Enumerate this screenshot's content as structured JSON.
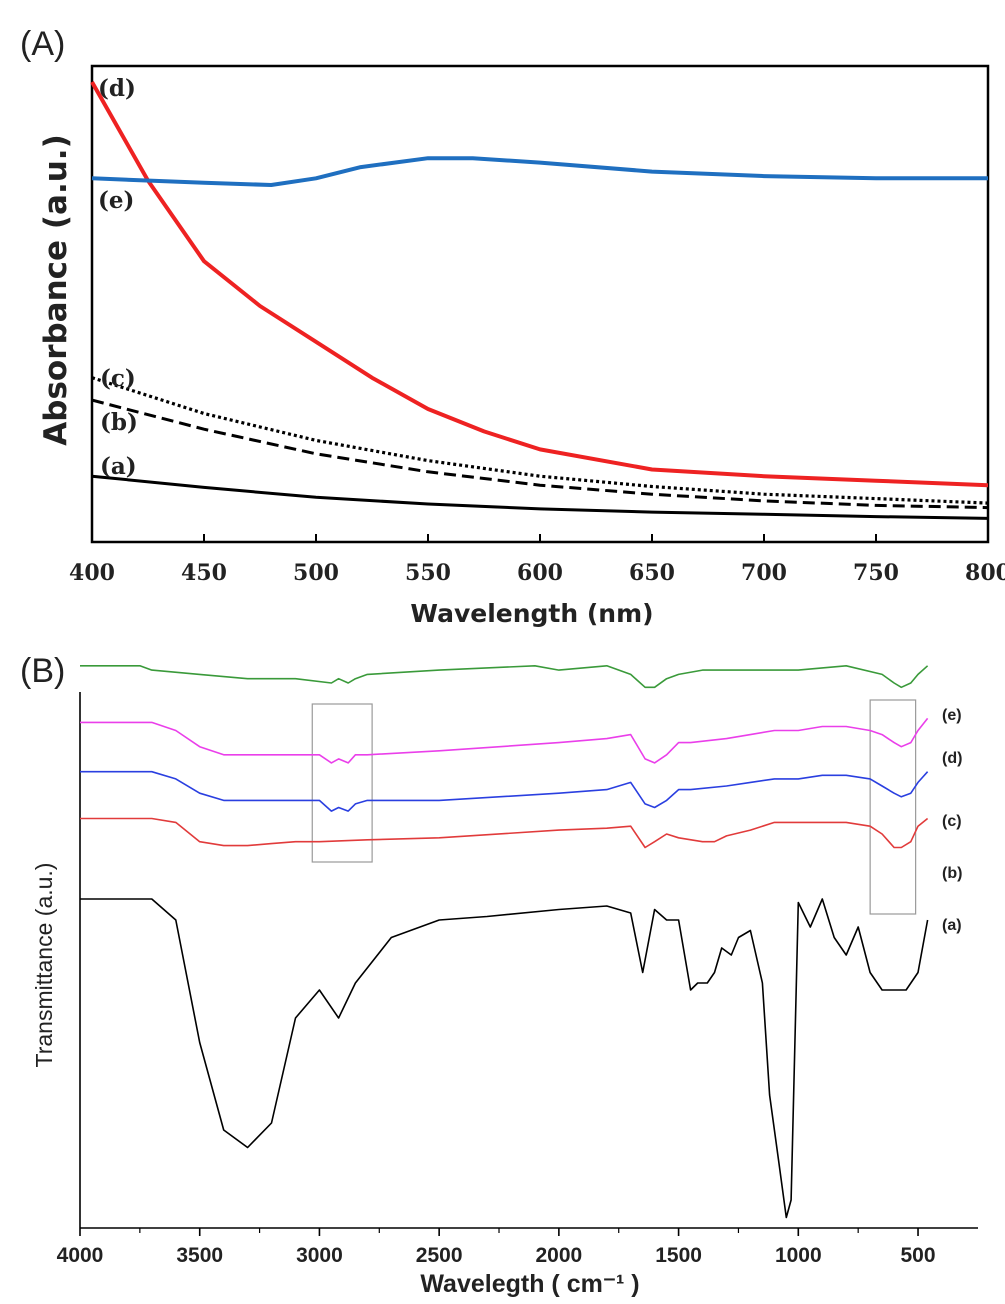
{
  "chart_data": [
    {
      "panel_label": "(A)",
      "type": "line",
      "title": "",
      "xlabel": "Wavelength (nm)",
      "ylabel": "Absorbance (a.u.)",
      "xlim": [
        400,
        800
      ],
      "ylim": [
        0,
        1
      ],
      "xticks": [
        "400",
        "450",
        "500",
        "550",
        "600",
        "650",
        "700",
        "750",
        "800"
      ],
      "grid": false,
      "series": [
        {
          "name": "(a)",
          "color": "#000000",
          "style": "solid",
          "x": [
            400,
            450,
            500,
            550,
            600,
            650,
            700,
            750,
            800
          ],
          "y": [
            0.12,
            0.095,
            0.073,
            0.058,
            0.047,
            0.04,
            0.035,
            0.03,
            0.026
          ]
        },
        {
          "name": "(b)",
          "color": "#000000",
          "style": "dashed",
          "x": [
            400,
            450,
            500,
            550,
            600,
            650,
            700,
            750,
            800
          ],
          "y": [
            0.29,
            0.225,
            0.17,
            0.13,
            0.1,
            0.08,
            0.065,
            0.055,
            0.05
          ]
        },
        {
          "name": "(c)",
          "color": "#000000",
          "style": "dotted",
          "x": [
            400,
            450,
            500,
            550,
            600,
            650,
            700,
            750,
            800
          ],
          "y": [
            0.34,
            0.26,
            0.2,
            0.155,
            0.12,
            0.097,
            0.08,
            0.07,
            0.06
          ]
        },
        {
          "name": "(d)",
          "color": "#ee2222",
          "style": "solid",
          "x": [
            400,
            425,
            450,
            475,
            500,
            525,
            550,
            575,
            600,
            650,
            700,
            750,
            800
          ],
          "y": [
            1.0,
            0.78,
            0.6,
            0.5,
            0.42,
            0.34,
            0.27,
            0.22,
            0.18,
            0.135,
            0.12,
            0.11,
            0.1
          ]
        },
        {
          "name": "(e)",
          "color": "#1f6fc0",
          "style": "solid",
          "x": [
            400,
            450,
            480,
            500,
            520,
            550,
            570,
            600,
            650,
            700,
            750,
            800
          ],
          "y": [
            0.785,
            0.775,
            0.77,
            0.785,
            0.81,
            0.83,
            0.83,
            0.82,
            0.8,
            0.79,
            0.785,
            0.785
          ]
        }
      ]
    },
    {
      "panel_label": "(B)",
      "type": "line",
      "title": "",
      "xlabel": "Wavelegth ( cm⁻¹ )",
      "ylabel": "Transmittance (a.u.)",
      "xlim": [
        4000,
        450
      ],
      "ylim": [
        0,
        1
      ],
      "xticks": [
        "4000",
        "3500",
        "3000",
        "2500",
        "2000",
        "1500",
        "1000",
        "500"
      ],
      "grid": false,
      "highlight_regions_x": [
        [
          3030,
          2780
        ],
        [
          700,
          510
        ]
      ],
      "series": [
        {
          "name": "(a)",
          "color": "#000000",
          "x": [
            4000,
            3700,
            3600,
            3500,
            3400,
            3300,
            3200,
            3100,
            3000,
            2920,
            2850,
            2700,
            2500,
            2300,
            2000,
            1800,
            1700,
            1650,
            1600,
            1550,
            1500,
            1450,
            1420,
            1380,
            1350,
            1320,
            1280,
            1250,
            1200,
            1150,
            1120,
            1080,
            1050,
            1030,
            1000,
            950,
            900,
            850,
            800,
            750,
            700,
            650,
            600,
            550,
            500,
            460
          ],
          "y": [
            0.96,
            0.96,
            0.9,
            0.55,
            0.3,
            0.25,
            0.32,
            0.62,
            0.7,
            0.62,
            0.72,
            0.85,
            0.9,
            0.91,
            0.93,
            0.94,
            0.92,
            0.75,
            0.93,
            0.9,
            0.9,
            0.7,
            0.72,
            0.72,
            0.75,
            0.82,
            0.8,
            0.85,
            0.87,
            0.72,
            0.4,
            0.2,
            0.05,
            0.1,
            0.95,
            0.88,
            0.96,
            0.85,
            0.8,
            0.88,
            0.75,
            0.7,
            0.7,
            0.7,
            0.75,
            0.9
          ]
        },
        {
          "name": "(b)",
          "color": "#e13b3b",
          "x": [
            4000,
            3700,
            3600,
            3500,
            3400,
            3300,
            3200,
            3100,
            3000,
            2800,
            2500,
            2000,
            1800,
            1700,
            1640,
            1600,
            1550,
            1500,
            1400,
            1350,
            1300,
            1200,
            1100,
            1000,
            900,
            800,
            700,
            650,
            600,
            570,
            530,
            500,
            460
          ],
          "y": [
            0.96,
            0.96,
            0.95,
            0.9,
            0.89,
            0.89,
            0.895,
            0.9,
            0.9,
            0.905,
            0.91,
            0.93,
            0.935,
            0.94,
            0.885,
            0.9,
            0.92,
            0.91,
            0.9,
            0.9,
            0.915,
            0.93,
            0.95,
            0.95,
            0.95,
            0.95,
            0.94,
            0.92,
            0.885,
            0.885,
            0.9,
            0.94,
            0.96
          ]
        },
        {
          "name": "(c)",
          "color": "#2a3fe0",
          "x": [
            4000,
            3700,
            3600,
            3500,
            3400,
            3300,
            3200,
            3100,
            3000,
            2950,
            2920,
            2880,
            2850,
            2800,
            2500,
            2000,
            1800,
            1700,
            1640,
            1600,
            1550,
            1500,
            1450,
            1300,
            1200,
            1100,
            1000,
            900,
            800,
            700,
            650,
            600,
            570,
            530,
            500,
            460
          ],
          "y": [
            0.96,
            0.96,
            0.95,
            0.93,
            0.92,
            0.92,
            0.92,
            0.92,
            0.92,
            0.905,
            0.91,
            0.905,
            0.915,
            0.92,
            0.92,
            0.93,
            0.935,
            0.945,
            0.915,
            0.91,
            0.92,
            0.935,
            0.935,
            0.94,
            0.945,
            0.95,
            0.95,
            0.955,
            0.955,
            0.95,
            0.94,
            0.93,
            0.925,
            0.93,
            0.945,
            0.96
          ]
        },
        {
          "name": "(d)",
          "color": "#ea3fea",
          "x": [
            4000,
            3700,
            3600,
            3500,
            3400,
            3300,
            3200,
            3100,
            3000,
            2950,
            2920,
            2880,
            2850,
            2800,
            2500,
            2000,
            1800,
            1700,
            1640,
            1600,
            1550,
            1500,
            1450,
            1300,
            1200,
            1100,
            1000,
            900,
            800,
            700,
            650,
            600,
            570,
            530,
            500,
            460
          ],
          "y": [
            0.96,
            0.96,
            0.95,
            0.93,
            0.92,
            0.92,
            0.92,
            0.92,
            0.92,
            0.91,
            0.915,
            0.91,
            0.92,
            0.92,
            0.925,
            0.935,
            0.94,
            0.945,
            0.915,
            0.91,
            0.92,
            0.935,
            0.935,
            0.94,
            0.945,
            0.95,
            0.95,
            0.955,
            0.955,
            0.95,
            0.945,
            0.935,
            0.93,
            0.935,
            0.95,
            0.965
          ]
        },
        {
          "name": "(e)",
          "color": "#3a9a3a",
          "x": [
            4000,
            3750,
            3700,
            3500,
            3300,
            3100,
            2950,
            2920,
            2880,
            2850,
            2800,
            2500,
            2100,
            2000,
            1800,
            1700,
            1640,
            1600,
            1550,
            1500,
            1400,
            1200,
            1000,
            800,
            650,
            600,
            570,
            530,
            500,
            460
          ],
          "y": [
            0.97,
            0.97,
            0.965,
            0.96,
            0.955,
            0.955,
            0.95,
            0.955,
            0.95,
            0.955,
            0.96,
            0.965,
            0.97,
            0.965,
            0.97,
            0.96,
            0.945,
            0.945,
            0.955,
            0.96,
            0.965,
            0.965,
            0.965,
            0.97,
            0.96,
            0.95,
            0.945,
            0.95,
            0.96,
            0.97
          ]
        }
      ]
    }
  ]
}
